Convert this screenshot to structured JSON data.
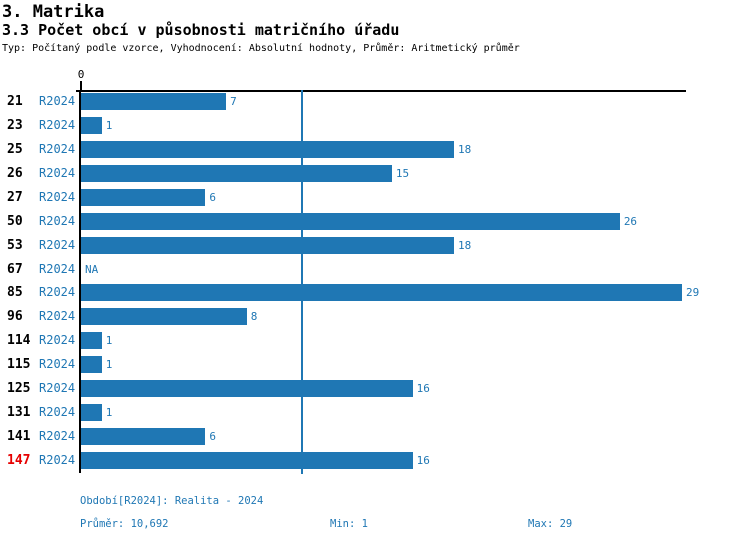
{
  "header": {
    "title": "3. Matrika",
    "subtitle": "3.3 Počet obcí v působnosti matričního úřadu",
    "meta": "Typ: Počítaný podle vzorce, Vyhodnocení: Absolutní hodnoty, Průměr: Aritmetický průměr"
  },
  "chart_data": {
    "type": "bar",
    "orientation": "horizontal",
    "title": "3.3 Počet obcí v působnosti matričního úřadu",
    "categories": [
      "21",
      "23",
      "25",
      "26",
      "27",
      "50",
      "53",
      "67",
      "85",
      "96",
      "114",
      "115",
      "125",
      "131",
      "141",
      "147"
    ],
    "series_label": "R2024",
    "values": [
      7,
      1,
      18,
      15,
      6,
      26,
      18,
      null,
      29,
      8,
      1,
      1,
      16,
      1,
      6,
      16
    ],
    "value_labels": [
      "7",
      "1",
      "18",
      "15",
      "6",
      "26",
      "18",
      "NA",
      "29",
      "8",
      "1",
      "1",
      "16",
      "1",
      "6",
      "16"
    ],
    "highlighted_category": "147",
    "average": 10.692,
    "x_axis": {
      "zero_label": "0",
      "min": 0,
      "max": 29
    },
    "grid": false,
    "legend": "none",
    "bar_color": "#1f77b4",
    "average_line_color": "#1f77b4",
    "highlight_color": "#e60000"
  },
  "footer": {
    "period": "Období[R2024]: Realita - 2024",
    "average": "Průměr: 10,692",
    "min": "Min: 1",
    "max": "Max: 29"
  },
  "colors": {
    "text_blue": "#1f77b4",
    "bar_blue": "#1f77b4",
    "highlight_red": "#e60000",
    "black": "#000000"
  }
}
